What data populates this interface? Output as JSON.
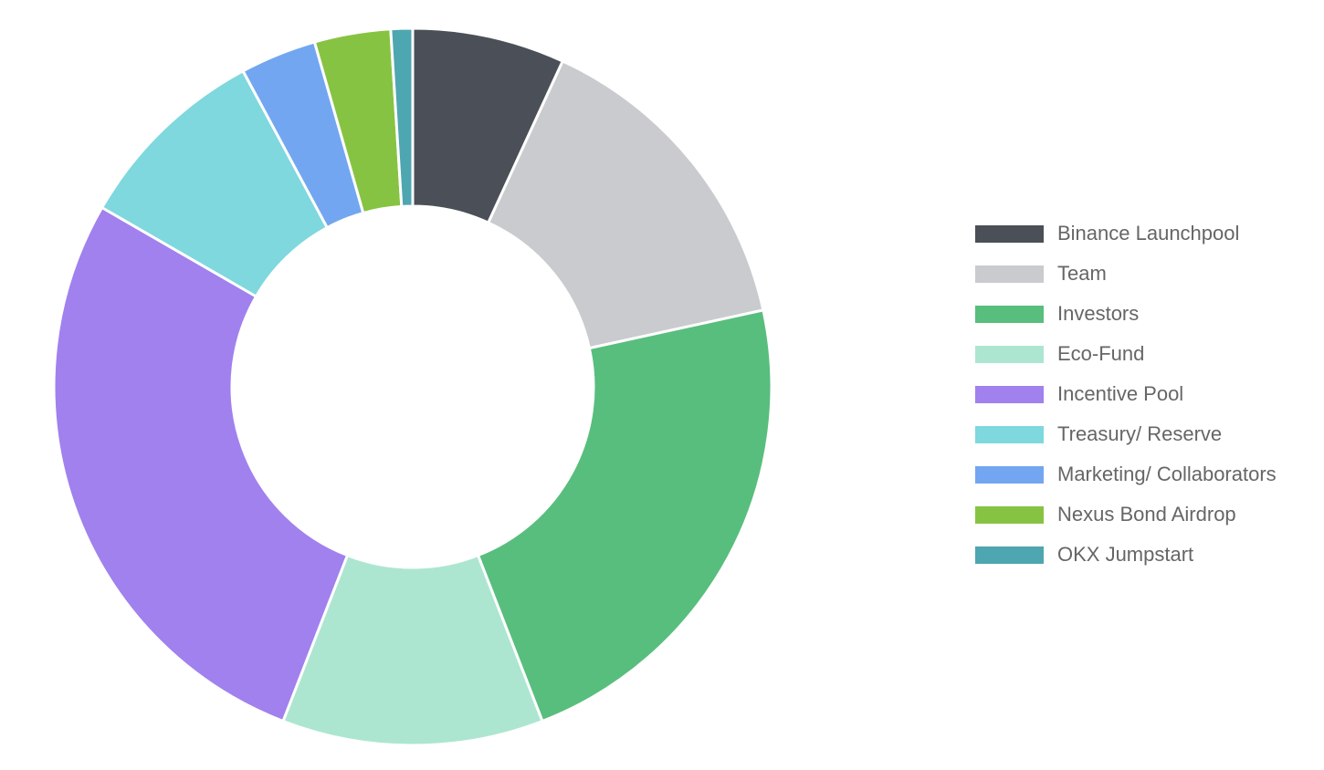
{
  "chart_data": {
    "type": "pie",
    "variant": "doughnut",
    "slices": [
      {
        "label": "Binance Launchpool",
        "value": 7,
        "color": "#4b4f57"
      },
      {
        "label": "Team",
        "value": 15,
        "color": "#c9cbcf"
      },
      {
        "label": "Investors",
        "value": 23,
        "color": "#58be7d"
      },
      {
        "label": "Eco-Fund",
        "value": 12,
        "color": "#ade6d0"
      },
      {
        "label": "Incentive Pool",
        "value": 28,
        "color": "#a081ee"
      },
      {
        "label": "Treasury/ Reserve",
        "value": 9,
        "color": "#7ed8de"
      },
      {
        "label": "Marketing/ Collaborators",
        "value": 3.5,
        "color": "#73a6f1"
      },
      {
        "label": "Nexus Bond Airdrop",
        "value": 3.5,
        "color": "#87c342"
      },
      {
        "label": "OKX Jumpstart",
        "value": 1,
        "color": "#4ea6b0"
      }
    ],
    "legend_position": "right",
    "title": ""
  }
}
